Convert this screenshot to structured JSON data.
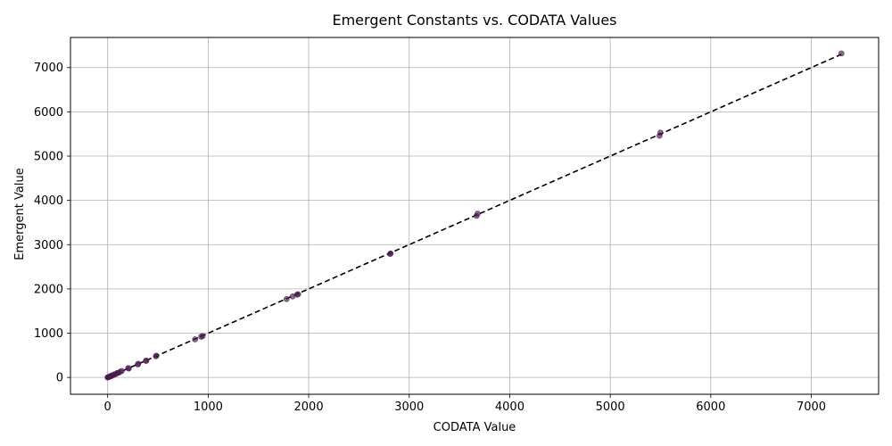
{
  "chart_data": {
    "type": "scatter",
    "title": "Emergent Constants vs. CODATA Values",
    "xlabel": "CODATA Value",
    "ylabel": "Emergent Value",
    "xlim": [
      -370,
      7670
    ],
    "ylim": [
      -380,
      7680
    ],
    "xticks": [
      0,
      1000,
      2000,
      3000,
      4000,
      5000,
      6000,
      7000
    ],
    "yticks": [
      0,
      1000,
      2000,
      3000,
      4000,
      5000,
      6000,
      7000
    ],
    "grid": true,
    "reference_line": {
      "style": "dashed",
      "color": "#000000",
      "from": [
        0,
        0
      ],
      "to": [
        7300,
        7300
      ]
    },
    "point_color": "#4b1a4f",
    "point_opacity": 0.65,
    "points": [
      {
        "x": 0,
        "y": 0
      },
      {
        "x": 3,
        "y": 5
      },
      {
        "x": 8,
        "y": 6
      },
      {
        "x": 12,
        "y": 14
      },
      {
        "x": 20,
        "y": 18
      },
      {
        "x": 28,
        "y": 32
      },
      {
        "x": 35,
        "y": 30
      },
      {
        "x": 45,
        "y": 48
      },
      {
        "x": 55,
        "y": 52
      },
      {
        "x": 68,
        "y": 70
      },
      {
        "x": 80,
        "y": 76
      },
      {
        "x": 95,
        "y": 100
      },
      {
        "x": 110,
        "y": 105
      },
      {
        "x": 125,
        "y": 130
      },
      {
        "x": 140,
        "y": 145
      },
      {
        "x": 205,
        "y": 210
      },
      {
        "x": 210,
        "y": 200
      },
      {
        "x": 300,
        "y": 295
      },
      {
        "x": 305,
        "y": 310
      },
      {
        "x": 380,
        "y": 375
      },
      {
        "x": 385,
        "y": 380
      },
      {
        "x": 480,
        "y": 480
      },
      {
        "x": 485,
        "y": 490
      },
      {
        "x": 870,
        "y": 860
      },
      {
        "x": 930,
        "y": 920
      },
      {
        "x": 945,
        "y": 935
      },
      {
        "x": 1780,
        "y": 1770
      },
      {
        "x": 1840,
        "y": 1830
      },
      {
        "x": 1885,
        "y": 1870
      },
      {
        "x": 1895,
        "y": 1880
      },
      {
        "x": 2810,
        "y": 2790
      },
      {
        "x": 2815,
        "y": 2800
      },
      {
        "x": 3670,
        "y": 3650
      },
      {
        "x": 3680,
        "y": 3700
      },
      {
        "x": 5490,
        "y": 5460
      },
      {
        "x": 5500,
        "y": 5530
      },
      {
        "x": 7300,
        "y": 7320
      }
    ]
  }
}
